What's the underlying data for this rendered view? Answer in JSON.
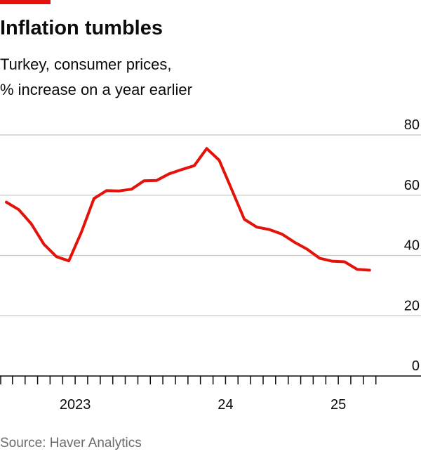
{
  "chart_data": {
    "type": "line",
    "title": "Inflation tumbles",
    "subtitle": [
      "Turkey, consumer prices,",
      "% increase on a year earlier"
    ],
    "source": "Source: Haver Analytics",
    "x": [
      2023.042,
      2023.125,
      2023.208,
      2023.292,
      2023.375,
      2023.458,
      2023.542,
      2023.625,
      2023.708,
      2023.792,
      2023.875,
      2023.958,
      2024.042,
      2024.125,
      2024.208,
      2024.292,
      2024.375,
      2024.458,
      2024.542,
      2024.625,
      2024.708,
      2024.792,
      2024.875,
      2024.958,
      2025.042,
      2025.125,
      2025.208,
      2025.292,
      2025.375,
      2025.458
    ],
    "series": [
      {
        "color": "#e3120b",
        "values": [
          57.7,
          55.2,
          50.5,
          43.7,
          39.6,
          38.2,
          47.8,
          58.9,
          61.5,
          61.4,
          62.0,
          64.8,
          64.9,
          67.1,
          68.5,
          69.8,
          75.5,
          71.6,
          61.8,
          52.0,
          49.4,
          48.6,
          47.1,
          44.4,
          42.1,
          39.1,
          38.1,
          37.9,
          35.4,
          35.1
        ]
      }
    ],
    "xlim": [
      2023,
      2025.8
    ],
    "xticks": [
      {
        "value": 2023.5,
        "label": "2023"
      },
      {
        "value": 2024.5,
        "label": "24"
      },
      {
        "value": 2025.25,
        "label": "25"
      }
    ],
    "xminorticks": [
      2023,
      2023.083,
      2023.167,
      2023.25,
      2023.333,
      2023.417,
      2023.5,
      2023.583,
      2023.667,
      2023.75,
      2023.833,
      2023.917,
      2024,
      2024.083,
      2024.167,
      2024.25,
      2024.333,
      2024.417,
      2024.5,
      2024.583,
      2024.667,
      2024.75,
      2024.833,
      2024.917,
      2025,
      2025.083,
      2025.167,
      2025.25,
      2025.333,
      2025.417,
      2025.5
    ],
    "ylim": [
      0,
      80
    ],
    "yticks": [
      0,
      20,
      40,
      60,
      80
    ],
    "grid": true
  }
}
